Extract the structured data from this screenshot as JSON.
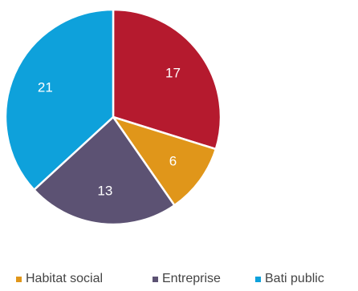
{
  "chart_data": {
    "type": "pie",
    "title": "",
    "categories": [
      "",
      "Habitat social",
      "Entreprise",
      "Bati public"
    ],
    "values": [
      17,
      6,
      13,
      21
    ],
    "colors": [
      "#B51A2E",
      "#E0961A",
      "#5C5273",
      "#0EA1DB"
    ],
    "data_labels": [
      "17",
      "6",
      "13",
      "21"
    ],
    "legend": {
      "placement": "bottom",
      "entries": [
        {
          "label": "Habitat social",
          "color": "#E0961A"
        },
        {
          "label": "Entreprise",
          "color": "#5C5273"
        },
        {
          "label": "Bati public",
          "color": "#0EA1DB"
        }
      ]
    }
  }
}
